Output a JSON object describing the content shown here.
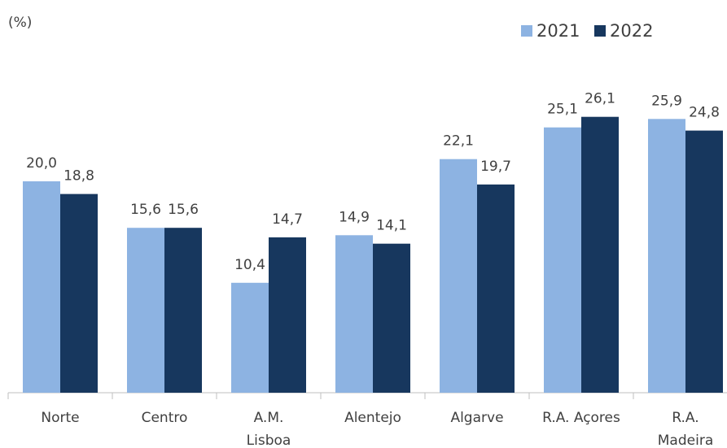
{
  "chart_data": {
    "type": "bar",
    "y_label": "(%)",
    "categories": [
      "Norte",
      "Centro",
      "A.M. Lisboa",
      "Alentejo",
      "Algarve",
      "R.A. Açores",
      "R.A. Madeira"
    ],
    "series": [
      {
        "name": "2021",
        "color": "#8db3e2",
        "values": [
          20.0,
          15.6,
          10.4,
          14.9,
          22.1,
          25.1,
          25.9
        ],
        "value_labels": [
          "20,0",
          "15,6",
          "10,4",
          "14,9",
          "22,1",
          "25,1",
          "25,9"
        ]
      },
      {
        "name": "2022",
        "color": "#17375e",
        "values": [
          18.8,
          15.6,
          14.7,
          14.1,
          19.7,
          26.1,
          24.8
        ],
        "value_labels": [
          "18,8",
          "15,6",
          "14,7",
          "14,1",
          "19,7",
          "26,1",
          "24,8"
        ]
      }
    ],
    "ylim": [
      0,
      30
    ],
    "legend": "top-right",
    "grid": false
  }
}
